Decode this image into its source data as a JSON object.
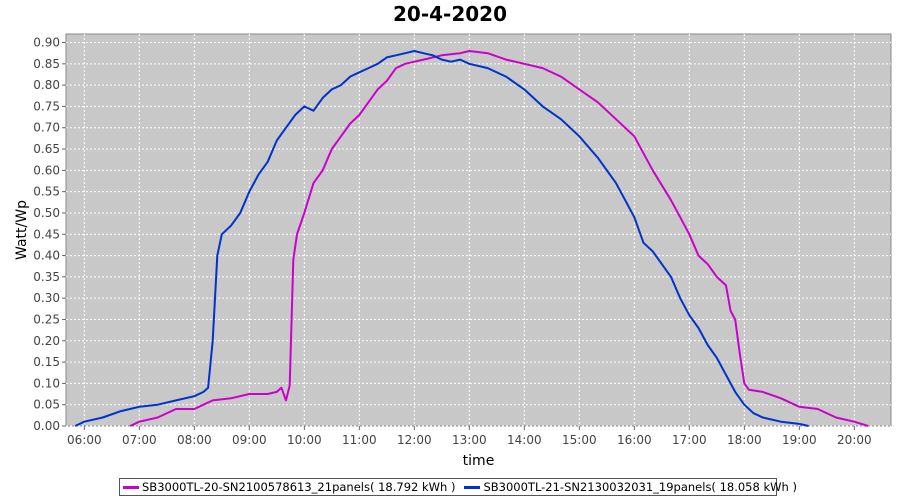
{
  "chart_data": {
    "type": "line",
    "title": "20-4-2020",
    "xlabel": "time",
    "ylabel": "Watt/Wp",
    "xlim": [
      "05:40",
      "20:40"
    ],
    "ylim": [
      0,
      0.92
    ],
    "x_ticks": [
      "06:00",
      "07:00",
      "08:00",
      "09:00",
      "10:00",
      "11:00",
      "12:00",
      "13:00",
      "14:00",
      "15:00",
      "16:00",
      "17:00",
      "18:00",
      "19:00",
      "20:00"
    ],
    "y_ticks": [
      "0.00",
      "0.05",
      "0.10",
      "0.15",
      "0.20",
      "0.25",
      "0.30",
      "0.35",
      "0.40",
      "0.45",
      "0.50",
      "0.55",
      "0.60",
      "0.65",
      "0.70",
      "0.75",
      "0.80",
      "0.85",
      "0.90"
    ],
    "grid": true,
    "legend_position": "bottom",
    "series": [
      {
        "name": "SB3000TL-20-SN2100578613_21panels( 18.792 kWh )",
        "color": "#cc00cc",
        "points": [
          [
            "06:50",
            0.0
          ],
          [
            "07:00",
            0.01
          ],
          [
            "07:20",
            0.02
          ],
          [
            "07:40",
            0.04
          ],
          [
            "08:00",
            0.04
          ],
          [
            "08:10",
            0.05
          ],
          [
            "08:20",
            0.06
          ],
          [
            "08:40",
            0.065
          ],
          [
            "09:00",
            0.075
          ],
          [
            "09:20",
            0.075
          ],
          [
            "09:30",
            0.08
          ],
          [
            "09:35",
            0.09
          ],
          [
            "09:40",
            0.06
          ],
          [
            "09:44",
            0.095
          ],
          [
            "09:48",
            0.39
          ],
          [
            "09:52",
            0.45
          ],
          [
            "10:00",
            0.5
          ],
          [
            "10:10",
            0.57
          ],
          [
            "10:20",
            0.6
          ],
          [
            "10:30",
            0.65
          ],
          [
            "10:40",
            0.68
          ],
          [
            "10:50",
            0.71
          ],
          [
            "11:00",
            0.73
          ],
          [
            "11:10",
            0.76
          ],
          [
            "11:20",
            0.79
          ],
          [
            "11:30",
            0.81
          ],
          [
            "11:40",
            0.84
          ],
          [
            "11:50",
            0.85
          ],
          [
            "12:00",
            0.855
          ],
          [
            "12:10",
            0.86
          ],
          [
            "12:30",
            0.87
          ],
          [
            "12:50",
            0.875
          ],
          [
            "13:00",
            0.88
          ],
          [
            "13:20",
            0.875
          ],
          [
            "13:40",
            0.86
          ],
          [
            "14:00",
            0.85
          ],
          [
            "14:20",
            0.84
          ],
          [
            "14:40",
            0.82
          ],
          [
            "15:00",
            0.79
          ],
          [
            "15:20",
            0.76
          ],
          [
            "15:40",
            0.72
          ],
          [
            "16:00",
            0.68
          ],
          [
            "16:10",
            0.64
          ],
          [
            "16:20",
            0.6
          ],
          [
            "16:40",
            0.53
          ],
          [
            "16:50",
            0.49
          ],
          [
            "17:00",
            0.45
          ],
          [
            "17:10",
            0.4
          ],
          [
            "17:20",
            0.38
          ],
          [
            "17:30",
            0.35
          ],
          [
            "17:40",
            0.33
          ],
          [
            "17:45",
            0.27
          ],
          [
            "17:50",
            0.25
          ],
          [
            "17:55",
            0.17
          ],
          [
            "18:00",
            0.1
          ],
          [
            "18:05",
            0.085
          ],
          [
            "18:20",
            0.08
          ],
          [
            "18:40",
            0.065
          ],
          [
            "19:00",
            0.045
          ],
          [
            "19:20",
            0.04
          ],
          [
            "19:40",
            0.02
          ],
          [
            "20:00",
            0.01
          ],
          [
            "20:15",
            0.0
          ]
        ]
      },
      {
        "name": "SB3000TL-21-SN2130032031_19panels( 18.058 kWh )",
        "color": "#0033cc",
        "points": [
          [
            "05:50",
            0.0
          ],
          [
            "06:00",
            0.01
          ],
          [
            "06:20",
            0.02
          ],
          [
            "06:40",
            0.035
          ],
          [
            "07:00",
            0.045
          ],
          [
            "07:20",
            0.05
          ],
          [
            "07:40",
            0.06
          ],
          [
            "08:00",
            0.07
          ],
          [
            "08:10",
            0.08
          ],
          [
            "08:15",
            0.09
          ],
          [
            "08:20",
            0.2
          ],
          [
            "08:25",
            0.4
          ],
          [
            "08:30",
            0.45
          ],
          [
            "08:40",
            0.47
          ],
          [
            "08:50",
            0.5
          ],
          [
            "09:00",
            0.55
          ],
          [
            "09:10",
            0.59
          ],
          [
            "09:20",
            0.62
          ],
          [
            "09:30",
            0.67
          ],
          [
            "09:40",
            0.7
          ],
          [
            "09:50",
            0.73
          ],
          [
            "10:00",
            0.75
          ],
          [
            "10:10",
            0.74
          ],
          [
            "10:20",
            0.77
          ],
          [
            "10:30",
            0.79
          ],
          [
            "10:40",
            0.8
          ],
          [
            "10:50",
            0.82
          ],
          [
            "11:00",
            0.83
          ],
          [
            "11:10",
            0.84
          ],
          [
            "11:20",
            0.85
          ],
          [
            "11:30",
            0.865
          ],
          [
            "11:40",
            0.87
          ],
          [
            "11:50",
            0.875
          ],
          [
            "12:00",
            0.88
          ],
          [
            "12:10",
            0.875
          ],
          [
            "12:20",
            0.87
          ],
          [
            "12:30",
            0.86
          ],
          [
            "12:40",
            0.855
          ],
          [
            "12:50",
            0.86
          ],
          [
            "13:00",
            0.85
          ],
          [
            "13:20",
            0.84
          ],
          [
            "13:40",
            0.82
          ],
          [
            "14:00",
            0.79
          ],
          [
            "14:20",
            0.75
          ],
          [
            "14:40",
            0.72
          ],
          [
            "15:00",
            0.68
          ],
          [
            "15:20",
            0.63
          ],
          [
            "15:40",
            0.57
          ],
          [
            "15:50",
            0.53
          ],
          [
            "16:00",
            0.49
          ],
          [
            "16:10",
            0.43
          ],
          [
            "16:20",
            0.41
          ],
          [
            "16:30",
            0.38
          ],
          [
            "16:40",
            0.35
          ],
          [
            "16:50",
            0.3
          ],
          [
            "17:00",
            0.26
          ],
          [
            "17:10",
            0.23
          ],
          [
            "17:20",
            0.19
          ],
          [
            "17:30",
            0.16
          ],
          [
            "17:40",
            0.12
          ],
          [
            "17:50",
            0.08
          ],
          [
            "18:00",
            0.05
          ],
          [
            "18:10",
            0.03
          ],
          [
            "18:20",
            0.02
          ],
          [
            "18:40",
            0.01
          ],
          [
            "19:00",
            0.005
          ],
          [
            "19:10",
            0.0
          ]
        ]
      }
    ]
  }
}
